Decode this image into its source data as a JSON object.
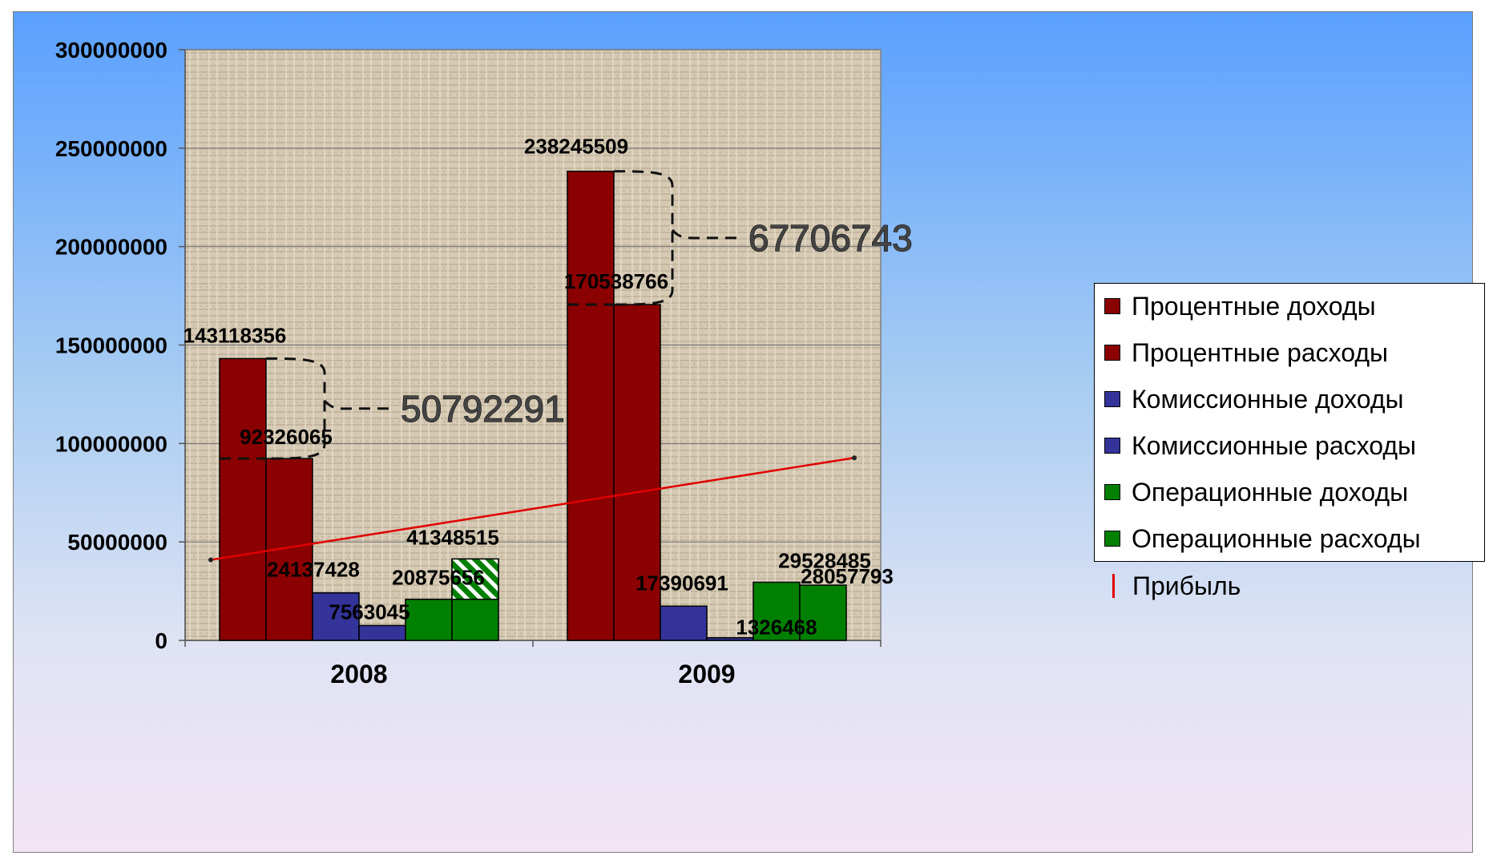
{
  "chart_data": {
    "type": "bar",
    "categories": [
      "2008",
      "2009"
    ],
    "ylim": [
      0,
      300000000
    ],
    "yticks": [
      "0",
      "50000000",
      "100000000",
      "150000000",
      "200000000",
      "250000000",
      "300000000"
    ],
    "grid": true,
    "legend_position": "right",
    "series": [
      {
        "name": "Процентные доходы",
        "values": [
          143118356,
          238245509
        ],
        "labels": [
          "143118356",
          "238245509"
        ],
        "color": "#8b0000"
      },
      {
        "name": "Процентные расходы",
        "values": [
          92326065,
          170538766
        ],
        "labels": [
          "92326065",
          "170538766"
        ],
        "color": "#8b0000"
      },
      {
        "name": "Комиссионные доходы",
        "values": [
          24137428,
          17390691
        ],
        "labels": [
          "24137428",
          "17390691"
        ],
        "color": "#33339a"
      },
      {
        "name": "Комиссионные расходы",
        "values": [
          7563045,
          1326468
        ],
        "labels": [
          "7563045",
          "1326468"
        ],
        "color": "#33339a"
      },
      {
        "name": "Операционные доходы",
        "values": [
          20875656,
          29528485
        ],
        "labels": [
          "20875656",
          "29528485"
        ],
        "color": "#008000"
      },
      {
        "name": "Операционные расходы",
        "values": [
          41348515,
          28057793
        ],
        "labels": [
          "41348515",
          "28057793"
        ],
        "color": "#008000"
      }
    ],
    "line_series": {
      "name": "Прибыль",
      "values": [
        40900000,
        92700000
      ],
      "color": "#e00000"
    },
    "annotations": [
      {
        "category": "2008",
        "text": "50792291"
      },
      {
        "category": "2009",
        "text": "67706743"
      }
    ]
  },
  "legend": {
    "items": [
      {
        "label": "Процентные доходы",
        "color": "#8b0000"
      },
      {
        "label": "Процентные расходы",
        "color": "#8b0000"
      },
      {
        "label": "Комиссионные доходы",
        "color": "#33339a"
      },
      {
        "label": "Комиссионные расходы",
        "color": "#33339a"
      },
      {
        "label": "Операционные доходы",
        "color": "#008000"
      },
      {
        "label": "Операционные расходы",
        "color": "#008000"
      }
    ],
    "line_label": "Прибыль",
    "line_color": "#e00000"
  }
}
